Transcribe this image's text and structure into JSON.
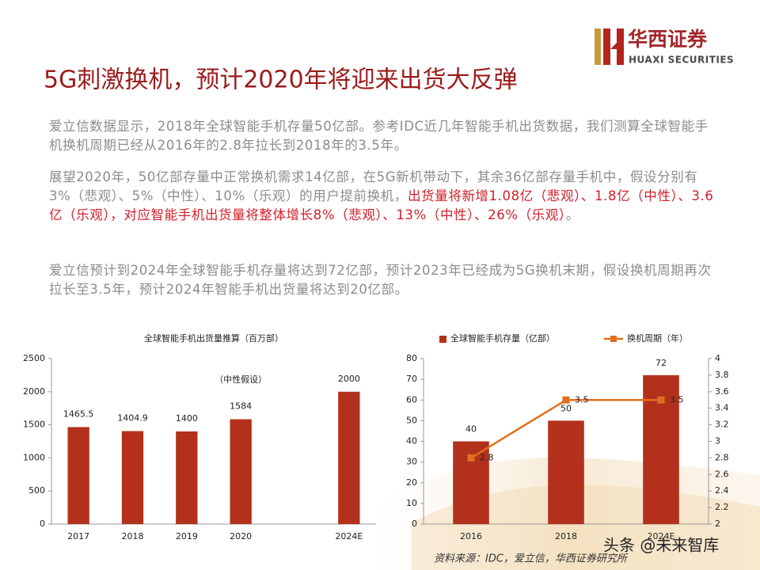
{
  "header": {
    "brand_cn": "华西证券",
    "brand_en": "HUAXI SECURITIES",
    "title": "5G刺激换机，预计2020年将迎来出货大反弹"
  },
  "paragraphs": [
    [
      "爱立信数据显示，2018年全球智能手机存量50亿部。参考IDC近几年智能手机出货数据，我们测算全球智能手机换机周期已经从2016年的2.8年拉长到2018年的3.5年。"
    ],
    [
      "展望2020年，50亿部存量中正常换机需求14亿部，在5G新机带动下，其余36亿部存量手机中，假设分别有3%（悲观）、5%（中性）、10%（乐观）的用户提前换机，",
      "出货量将新增1.08亿（悲观）、1.8亿（中性）、3.6亿（乐观），对应智能手机出货量将整体增长8%（悲观）、13%（中性）、26%（乐观）",
      "。"
    ],
    [
      "爱立信预计到2024年全球智能手机存量将达到72亿部，预计2023年已经成为5G换机末期，假设换机周期再次拉长至3.5年，预计2024年智能手机出货量将达到20亿部。"
    ]
  ],
  "chart_data": [
    {
      "type": "bar",
      "title": "全球智能手机出货量推算（百万部）",
      "annotation": "（中性假设）",
      "categories": [
        "2017",
        "2018",
        "2019",
        "2020",
        null,
        "2024E"
      ],
      "values": [
        1465.5,
        1404.9,
        1400,
        1584,
        null,
        2000
      ],
      "color": "#b3311c",
      "ylim": [
        0,
        2500
      ],
      "yticks": [
        0,
        500,
        1000,
        1500,
        2000,
        2500
      ]
    },
    {
      "type": "bar-line",
      "categories": [
        "2016",
        "2018",
        "2024E"
      ],
      "series": [
        {
          "name": "全球智能手机存量（亿部）",
          "color": "#b3311c",
          "values": [
            40,
            50,
            72
          ]
        },
        {
          "name": "换机周期（年）",
          "color": "#e0701e",
          "values": [
            2.8,
            3.5,
            3.5
          ],
          "axis": "y2"
        }
      ],
      "ylim": [
        0,
        80
      ],
      "yticks": [
        0,
        10,
        20,
        30,
        40,
        50,
        60,
        70,
        80
      ],
      "y2lim": [
        2,
        4
      ],
      "y2ticks": [
        2,
        2.2,
        2.4,
        2.6,
        2.8,
        3,
        3.2,
        3.4,
        3.6,
        3.8,
        4
      ],
      "legend": "top"
    }
  ],
  "source": "资料来源：IDC，爱立信，华西证券研究所",
  "watermark": "头条 @未来智库"
}
